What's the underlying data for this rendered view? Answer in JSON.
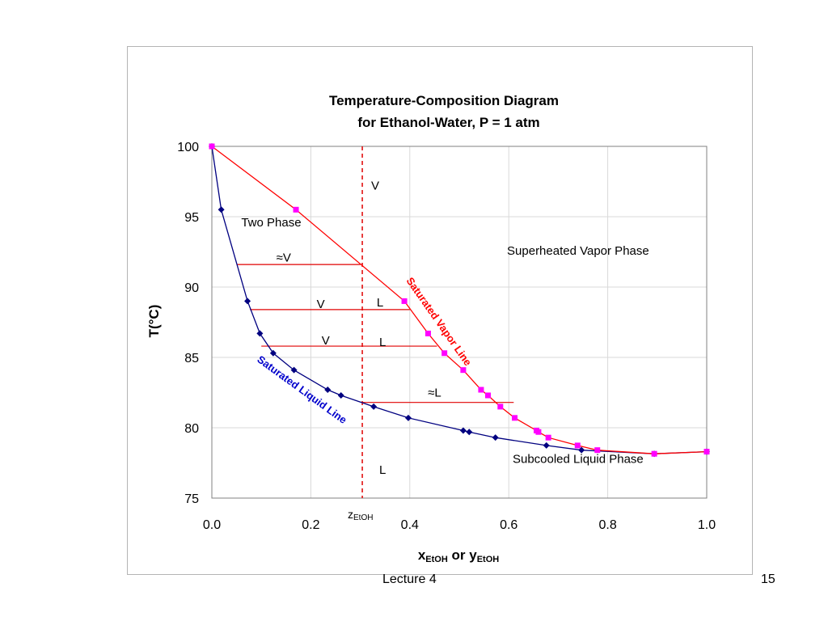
{
  "chart_data": {
    "type": "scatter",
    "title": "Temperature-Composition Diagram",
    "subtitle": "for Ethanol-Water, P = 1 atm",
    "xlabel": {
      "main": "x",
      "sub": "EtOH",
      "mid": " or y",
      "sub2": "EtOH"
    },
    "ylabel": "T(°C)",
    "xlim": [
      0.0,
      1.0
    ],
    "ylim": [
      75,
      100
    ],
    "xticks": [
      0.0,
      0.2,
      0.4,
      0.6,
      0.8,
      1.0
    ],
    "xtick_labels": [
      "0.0",
      "0.2",
      "0.4",
      "0.6",
      "0.8",
      "1.0"
    ],
    "yticks": [
      75,
      80,
      85,
      90,
      95,
      100
    ],
    "ytick_labels": [
      "75",
      "80",
      "85",
      "90",
      "95",
      "100"
    ],
    "grid": true,
    "series": [
      {
        "name": "Saturated Liquid Line",
        "color": "#000080",
        "line_color": "#000080",
        "marker": "diamond",
        "x": [
          0.0,
          0.019,
          0.072,
          0.097,
          0.124,
          0.166,
          0.234,
          0.261,
          0.327,
          0.397,
          0.508,
          0.52,
          0.573,
          0.676,
          0.747,
          0.894,
          1.0
        ],
        "y": [
          100.0,
          95.5,
          89.0,
          86.7,
          85.3,
          84.1,
          82.7,
          82.3,
          81.5,
          80.7,
          79.8,
          79.7,
          79.3,
          78.74,
          78.41,
          78.15,
          78.3
        ]
      },
      {
        "name": "Saturated Vapor Line",
        "color": "#ff00ff",
        "line_color": "#ff0000",
        "marker": "square",
        "x": [
          0.0,
          0.17,
          0.389,
          0.437,
          0.47,
          0.508,
          0.544,
          0.558,
          0.583,
          0.612,
          0.656,
          0.66,
          0.68,
          0.739,
          0.779,
          0.894,
          1.0
        ],
        "y": [
          100.0,
          95.5,
          89.0,
          86.7,
          85.3,
          84.1,
          82.7,
          82.3,
          81.5,
          80.7,
          79.8,
          79.7,
          79.3,
          78.74,
          78.41,
          78.15,
          78.3
        ]
      }
    ],
    "tie_lines": [
      {
        "x1": 0.05,
        "x2": 0.3,
        "y": 91.6
      },
      {
        "x1": 0.077,
        "x2": 0.4,
        "y": 88.4
      },
      {
        "x1": 0.1,
        "x2": 0.455,
        "y": 85.8
      },
      {
        "x1": 0.305,
        "x2": 0.61,
        "y": 81.8
      }
    ],
    "z_line": {
      "x": 0.304,
      "label_main": "z",
      "label_sub": "EtOH"
    },
    "annotations": [
      {
        "text": "V",
        "x": 0.33,
        "y": 97.2
      },
      {
        "text": "Two Phase",
        "x": 0.12,
        "y": 94.6
      },
      {
        "text": "Superheated Vapor Phase",
        "x": 0.74,
        "y": 92.6
      },
      {
        "text": "≈V",
        "x": 0.145,
        "y": 92.1
      },
      {
        "text": "V",
        "x": 0.22,
        "y": 88.8
      },
      {
        "text": "L",
        "x": 0.34,
        "y": 88.9
      },
      {
        "text": "V",
        "x": 0.23,
        "y": 86.2
      },
      {
        "text": "L",
        "x": 0.345,
        "y": 86.1
      },
      {
        "text": "≈L",
        "x": 0.45,
        "y": 82.5
      },
      {
        "text": "L",
        "x": 0.345,
        "y": 77.0
      },
      {
        "text": "Subcooled Liquid Phase",
        "x": 0.74,
        "y": 77.8
      }
    ],
    "curve_labels": [
      {
        "text": "Saturated Vapor Line",
        "x": 0.453,
        "y": 87.4,
        "angle": 55,
        "color": "#ff0000"
      },
      {
        "text": "Saturated Liquid Line",
        "x": 0.178,
        "y": 82.5,
        "angle": 36,
        "color": "#0000cc"
      }
    ]
  },
  "footer": {
    "left": "Lecture 4",
    "right": "15"
  }
}
